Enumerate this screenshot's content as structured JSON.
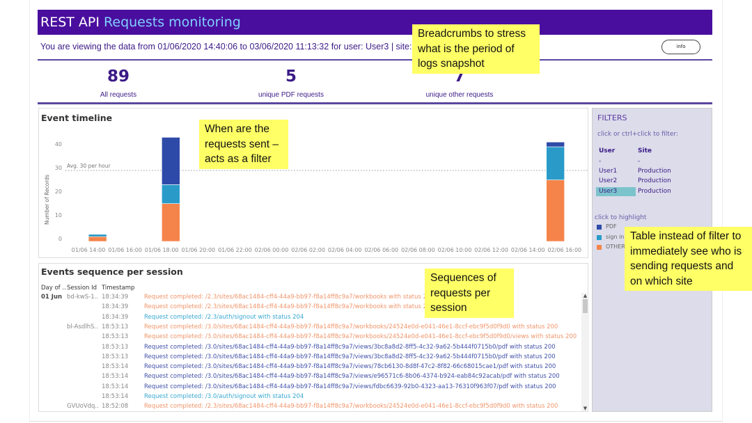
{
  "header": {
    "title_part1": "REST API",
    "title_part2": "Requests monitoring"
  },
  "breadcrumb": "You are viewing the data from 01/06/2020 14:40:06 to 03/06/2020 11:13:32 for user: User3 | site: Pr",
  "info_button": "info",
  "kpis": [
    {
      "value": "89",
      "label": "All requests"
    },
    {
      "value": "5",
      "label": "unique PDF requests"
    },
    {
      "value": "7",
      "label": "unique other requests"
    }
  ],
  "timeline": {
    "title": "Event timeline"
  },
  "chart_data": {
    "type": "bar",
    "stacked": true,
    "ylabel": "Number of Records",
    "yticks": [
      0,
      10,
      20,
      30,
      40
    ],
    "ylim": [
      0,
      45
    ],
    "xticks": [
      "01/06 14:00",
      "01/06 16:00",
      "01/06 18:00",
      "01/06 20:00",
      "01/06 22:00",
      "02/06 00:00",
      "02/06 02:00",
      "02/06 04:00",
      "02/06 06:00",
      "02/06 08:00",
      "02/06 10:00",
      "02/06 12:00",
      "02/06 14:00",
      "02/06 16:00"
    ],
    "categories": [
      "01/06 14:00",
      "01/06 18:00",
      "02/06 15:00"
    ],
    "series": [
      {
        "name": "OTHER",
        "color": "#f5844a",
        "values": [
          2,
          16,
          26
        ]
      },
      {
        "name": "sign in",
        "color": "#2a9bc9",
        "values": [
          1,
          8,
          14
        ]
      },
      {
        "name": "PDF",
        "color": "#2e4aa8",
        "values": [
          0,
          20,
          2
        ]
      }
    ],
    "reference_line": {
      "value": 30,
      "label": "Avg. 30 per hour"
    },
    "grid": false
  },
  "filters": {
    "title": "FILTERS",
    "hint": "click or ctrl+click to filter:",
    "col_user": "User",
    "col_site": "Site",
    "rows": [
      {
        "user": "-",
        "site": "-"
      },
      {
        "user": "User1",
        "site": "Production"
      },
      {
        "user": "User2",
        "site": "Production"
      },
      {
        "user": "User3",
        "site": "Production",
        "selected": true
      }
    ],
    "highlight_hint": "click to highlight",
    "legend": [
      {
        "label": "PDF",
        "color": "#2e4aa8"
      },
      {
        "label": "sign in",
        "color": "#2a9bc9"
      },
      {
        "label": "OTHER",
        "color": "#f5844a"
      }
    ]
  },
  "events": {
    "title": "Events sequence per session",
    "headers": [
      "Day of ..",
      "Session Id",
      "Timestamp"
    ],
    "rows": [
      {
        "day": "01 Jun",
        "session": "bd-kwS-1..",
        "time": "18:34:39",
        "text": "Request completed: /2.3/sites/68ac1484-cff4-44a9-bb97-f8a14ff8c9a7/workbooks with status 200",
        "type": "other"
      },
      {
        "day": "",
        "session": "",
        "time": "18:34:39",
        "text": "Request completed: /2.3/sites/68ac1484-cff4-44a9-bb97-f8a14ff8c9a7/workbooks with status 200",
        "type": "other"
      },
      {
        "day": "",
        "session": "",
        "time": "18:34:39",
        "text": "Request completed: /2.3/auth/signout with status 204",
        "type": "signin"
      },
      {
        "day": "",
        "session": "bl-AsdlhS..",
        "time": "18:53:13",
        "text": "Request completed: /3.0/sites/68ac1484-cff4-44a9-bb97-f8a14ff8c9a7/workbooks/24524e0d-e041-46e1-8ccf-ebc9f5d0f9d0 with status 200",
        "type": "other"
      },
      {
        "day": "",
        "session": "",
        "time": "18:53:13",
        "text": "Request completed: /3.0/sites/68ac1484-cff4-44a9-bb97-f8a14ff8c9a7/workbooks/24524e0d-e041-46e1-8ccf-ebc9f5d0f9d0/views with status 200",
        "type": "other"
      },
      {
        "day": "",
        "session": "",
        "time": "18:53:13",
        "text": "Request completed: /3.0/sites/68ac1484-cff4-44a9-bb97-f8a14ff8c9a7/views/3bc8a8d2-8ff5-4c32-9a62-5b444f0715b0/pdf with status 200",
        "type": "pdf"
      },
      {
        "day": "",
        "session": "",
        "time": "18:53:13",
        "text": "Request completed: /3.0/sites/68ac1484-cff4-44a9-bb97-f8a14ff8c9a7/views/3bc8a8d2-8ff5-4c32-9a62-5b444f0715b0/pdf with status 200",
        "type": "pdf"
      },
      {
        "day": "",
        "session": "",
        "time": "18:53:14",
        "text": "Request completed: /3.0/sites/68ac1484-cff4-44a9-bb97-f8a14ff8c9a7/views/78cb6130-8d8f-47c2-8f82-66c68015cae1/pdf with status 200",
        "type": "pdf"
      },
      {
        "day": "",
        "session": "",
        "time": "18:53:14",
        "text": "Request completed: /3.0/sites/68ac1484-cff4-44a9-bb97-f8a14ff8c9a7/views/e96571c6-8b06-4374-b924-eab84c92acab/pdf with status 200",
        "type": "pdf"
      },
      {
        "day": "",
        "session": "",
        "time": "18:53:14",
        "text": "Request completed: /3.0/sites/68ac1484-cff4-44a9-bb97-f8a14ff8c9a7/views/fdbc6639-92b0-4323-aa13-76310f963f07/pdf with status 200",
        "type": "pdf"
      },
      {
        "day": "",
        "session": "",
        "time": "18:53:14",
        "text": "Request completed: /3.0/auth/signout with status 204",
        "type": "signin"
      },
      {
        "day": "",
        "session": "GVUoVdq..",
        "time": "18:52:08",
        "text": "Request completed: /2.3/sites/68ac1484-cff4-44a9-bb97-f8a14ff8c9a7/workbooks/24524e0d-e041-46e1-8ccf-ebc9f5d0f9d0 with status 200",
        "type": "other"
      }
    ]
  },
  "event_colors": {
    "other": "#f0956a",
    "signin": "#38a8d0",
    "pdf": "#4050a8"
  },
  "annotations": [
    "Breadcrumbs  to stress what is the period of logs snapshot",
    "When are the requests sent – acts as a filter",
    "Sequences of requests per session",
    "Table instead of filter to immediately see who is sending requests and on which site"
  ]
}
